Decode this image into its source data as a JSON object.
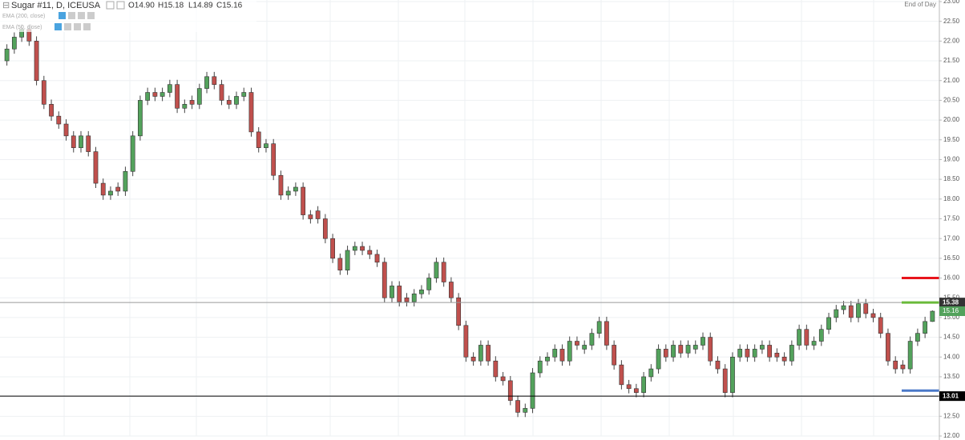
{
  "chart_data": {
    "type": "candlestick",
    "header": {
      "symbol": "Sugar #11, D, ICEUSA",
      "open": "O14.90",
      "high": "H15.18",
      "low": "L14.89",
      "close": "C15.16"
    },
    "indicators": [
      "EMA (200, close)",
      "EMA (50, close)"
    ],
    "mode_label": "End of Day",
    "up_color": "#53a25c",
    "down_color": "#c0504d",
    "open": [
      21.5,
      21.8,
      22.1,
      22.3,
      22.0,
      21.0,
      20.4,
      20.1,
      19.9,
      19.6,
      19.3,
      19.6,
      19.2,
      18.4,
      18.1,
      18.3,
      18.2,
      18.7,
      19.6,
      20.5,
      20.7,
      20.6,
      20.7,
      20.9,
      20.3,
      20.5,
      20.4,
      20.8,
      21.1,
      20.9,
      20.5,
      20.4,
      20.6,
      20.7,
      19.7,
      19.3,
      19.4,
      18.6,
      18.1,
      18.2,
      18.3,
      17.6,
      17.7,
      17.5,
      17.0,
      16.5,
      16.2,
      16.7,
      16.8,
      16.7,
      16.6,
      16.4,
      15.5,
      15.8,
      15.5,
      15.4,
      15.6,
      15.7,
      16.0,
      16.4,
      15.9,
      15.5,
      14.8,
      14.0,
      13.9,
      14.3,
      13.9,
      13.5,
      13.4,
      12.9,
      12.6,
      12.7,
      13.6,
      13.9,
      14.0,
      14.2,
      13.9,
      14.4,
      14.2,
      14.3,
      14.6,
      14.9,
      14.3,
      13.8,
      13.3,
      13.2,
      13.1,
      13.5,
      13.7,
      14.2,
      14.0,
      14.3,
      14.1,
      14.2,
      14.3,
      14.5,
      13.9,
      13.7,
      13.1,
      14.0,
      14.2,
      14.0,
      14.2,
      14.3,
      14.1,
      14.0,
      13.9,
      14.3,
      14.7,
      14.3,
      14.4,
      14.7,
      15.0,
      15.2,
      15.3,
      15.0,
      15.35,
      15.1,
      15.0,
      14.6,
      13.9,
      13.8,
      13.7,
      14.4,
      14.6,
      14.9
    ],
    "high": [
      21.92,
      22.22,
      22.42,
      22.42,
      22.12,
      21.12,
      20.52,
      20.22,
      20.02,
      19.72,
      19.72,
      19.72,
      19.32,
      18.52,
      18.32,
      18.42,
      18.82,
      19.72,
      20.62,
      20.82,
      20.82,
      20.82,
      21.02,
      21.02,
      20.52,
      20.62,
      20.92,
      21.22,
      21.22,
      21.02,
      20.62,
      20.72,
      20.82,
      20.82,
      19.82,
      19.52,
      19.52,
      18.72,
      18.32,
      18.42,
      18.42,
      17.72,
      17.82,
      17.62,
      17.12,
      16.62,
      16.82,
      16.92,
      16.92,
      16.82,
      16.72,
      16.52,
      15.92,
      15.92,
      15.62,
      15.72,
      15.82,
      16.12,
      16.52,
      16.52,
      16.02,
      15.62,
      14.92,
      14.12,
      14.42,
      14.42,
      14.02,
      13.62,
      13.52,
      13.02,
      12.82,
      13.72,
      14.02,
      14.12,
      14.32,
      14.32,
      14.52,
      14.52,
      14.42,
      14.72,
      15.02,
      15.02,
      14.42,
      13.92,
      13.42,
      13.32,
      13.62,
      13.82,
      14.32,
      14.32,
      14.42,
      14.42,
      14.42,
      14.42,
      14.62,
      14.62,
      14.02,
      13.82,
      14.12,
      14.32,
      14.32,
      14.32,
      14.42,
      14.42,
      14.22,
      14.12,
      14.42,
      14.82,
      14.82,
      14.52,
      14.82,
      15.12,
      15.32,
      15.42,
      15.42,
      15.47,
      15.47,
      15.22,
      15.12,
      14.72,
      14.02,
      13.92,
      14.52,
      14.72,
      15.02,
      15.18
    ],
    "low": [
      21.38,
      21.68,
      21.98,
      21.88,
      20.88,
      20.28,
      19.98,
      19.78,
      19.48,
      19.18,
      19.18,
      19.08,
      18.28,
      17.98,
      17.98,
      18.08,
      18.08,
      18.58,
      19.48,
      20.38,
      20.48,
      20.48,
      20.58,
      20.18,
      20.18,
      20.28,
      20.28,
      20.68,
      20.78,
      20.38,
      20.28,
      20.28,
      20.48,
      19.58,
      19.18,
      19.18,
      18.48,
      17.98,
      17.98,
      18.08,
      17.48,
      17.38,
      17.38,
      16.88,
      16.38,
      16.08,
      16.08,
      16.58,
      16.58,
      16.48,
      16.28,
      15.38,
      15.38,
      15.28,
      15.28,
      15.28,
      15.48,
      15.58,
      15.88,
      15.78,
      15.38,
      14.68,
      13.88,
      13.78,
      13.78,
      13.78,
      13.38,
      13.28,
      12.78,
      12.48,
      12.48,
      12.58,
      13.48,
      13.78,
      13.88,
      13.78,
      13.78,
      14.18,
      14.08,
      14.18,
      14.48,
      14.18,
      13.68,
      13.18,
      13.08,
      12.98,
      12.98,
      13.38,
      13.58,
      13.88,
      13.88,
      13.98,
      13.98,
      14.08,
      14.18,
      13.78,
      13.58,
      12.98,
      12.98,
      13.88,
      13.88,
      13.88,
      14.08,
      13.88,
      13.88,
      13.78,
      13.78,
      14.18,
      14.18,
      14.18,
      14.28,
      14.58,
      14.88,
      15.08,
      14.88,
      14.88,
      14.98,
      14.88,
      14.48,
      13.78,
      13.58,
      13.58,
      13.58,
      14.28,
      14.48,
      14.89
    ],
    "close": [
      21.8,
      22.1,
      22.3,
      22.0,
      21.0,
      20.4,
      20.1,
      19.9,
      19.6,
      19.3,
      19.6,
      19.2,
      18.4,
      18.1,
      18.2,
      18.2,
      18.7,
      19.6,
      20.5,
      20.7,
      20.6,
      20.7,
      20.9,
      20.3,
      20.4,
      20.4,
      20.8,
      21.1,
      20.9,
      20.5,
      20.4,
      20.6,
      20.7,
      19.7,
      19.3,
      19.4,
      18.6,
      18.1,
      18.2,
      18.3,
      17.6,
      17.5,
      17.5,
      17.0,
      16.5,
      16.2,
      16.7,
      16.8,
      16.7,
      16.6,
      16.4,
      15.5,
      15.8,
      15.4,
      15.4,
      15.6,
      15.7,
      16.0,
      16.4,
      15.9,
      15.5,
      14.8,
      14.0,
      13.9,
      14.3,
      13.9,
      13.5,
      13.4,
      12.9,
      12.6,
      12.7,
      13.6,
      13.9,
      14.0,
      14.2,
      13.9,
      14.4,
      14.3,
      14.3,
      14.6,
      14.9,
      14.3,
      13.8,
      13.3,
      13.2,
      13.1,
      13.5,
      13.7,
      14.2,
      14.0,
      14.3,
      14.1,
      14.3,
      14.3,
      14.5,
      13.9,
      13.7,
      13.1,
      14.0,
      14.2,
      14.0,
      14.2,
      14.3,
      14.0,
      14.0,
      13.9,
      14.3,
      14.7,
      14.3,
      14.4,
      14.7,
      15.0,
      15.2,
      15.3,
      15.0,
      15.35,
      15.1,
      15.0,
      14.6,
      13.9,
      13.7,
      13.7,
      14.4,
      14.6,
      14.9,
      15.16
    ],
    "ylim": [
      12,
      23
    ],
    "yticks": [
      {
        "value": 12,
        "label": "12.00"
      },
      {
        "value": 12.5,
        "label": "12.50"
      },
      {
        "value": 13,
        "label": "13.00"
      },
      {
        "value": 13.5,
        "label": "13.50"
      },
      {
        "value": 14,
        "label": "14.00"
      },
      {
        "value": 14.5,
        "label": "14.50"
      },
      {
        "value": 15,
        "label": "15.00"
      },
      {
        "value": 15.5,
        "label": "15.50"
      },
      {
        "value": 16,
        "label": "16.00"
      },
      {
        "value": 16.5,
        "label": "16.50"
      },
      {
        "value": 17,
        "label": "17.00"
      },
      {
        "value": 17.5,
        "label": "17.50"
      },
      {
        "value": 18,
        "label": "18.00"
      },
      {
        "value": 18.5,
        "label": "18.50"
      },
      {
        "value": 19,
        "label": "19.00"
      },
      {
        "value": 19.5,
        "label": "19.50"
      },
      {
        "value": 20,
        "label": "20.00"
      },
      {
        "value": 20.5,
        "label": "20.50"
      },
      {
        "value": 21,
        "label": "21.00"
      },
      {
        "value": 21.5,
        "label": "21.50"
      },
      {
        "value": 22,
        "label": "22.00"
      },
      {
        "value": 22.5,
        "label": "22.50"
      },
      {
        "value": 23,
        "label": "23.00"
      }
    ],
    "grid": true,
    "horizontal_lines": [
      {
        "value": 15.38,
        "color": "#9a9a9a"
      },
      {
        "value": 13.01,
        "color": "#000000"
      }
    ],
    "last_price": {
      "value": 15.16,
      "color": "#53a25c"
    },
    "segments": [
      {
        "value": 16.0,
        "color": "#e8141c"
      },
      {
        "value": 15.38,
        "color": "#6aba3a"
      },
      {
        "value": 13.15,
        "color": "#4a78c8"
      }
    ]
  }
}
